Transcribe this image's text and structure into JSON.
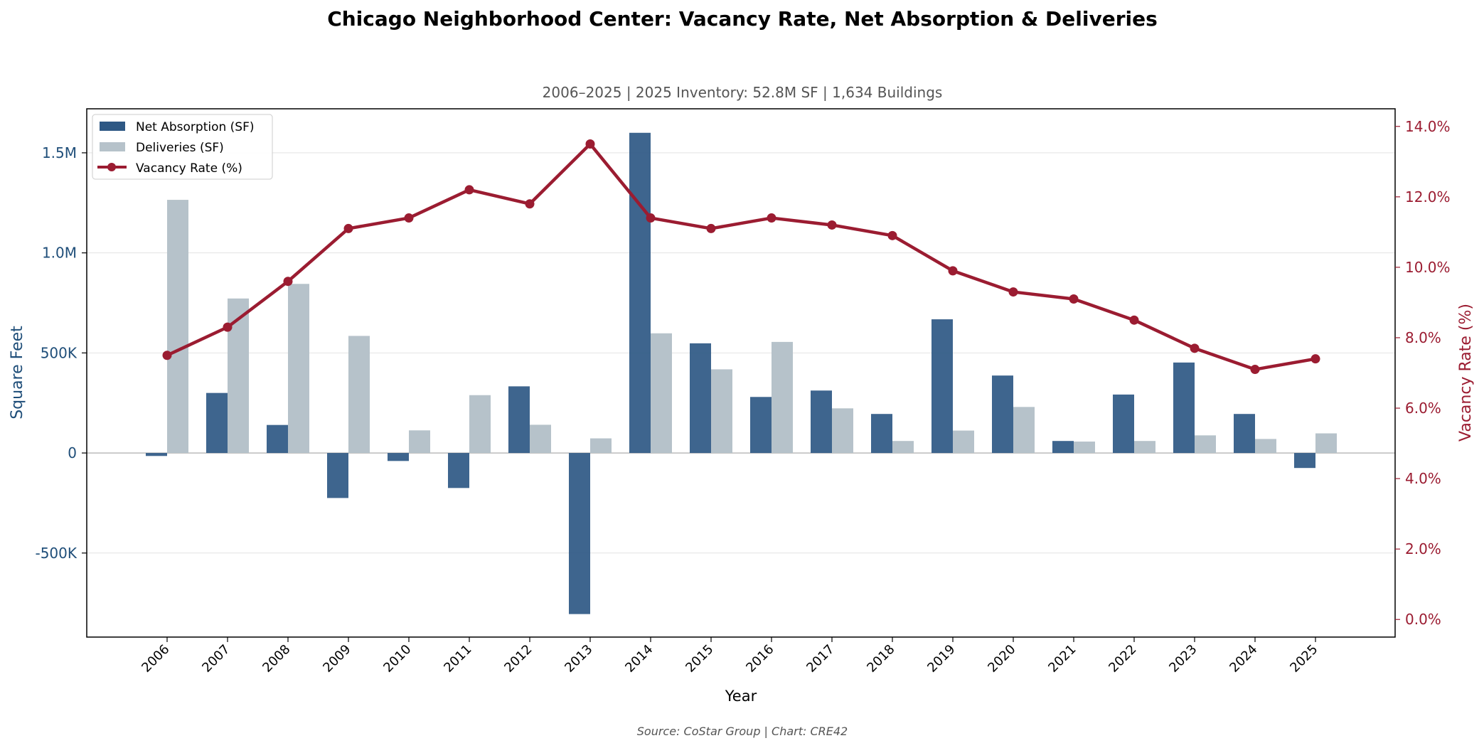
{
  "chart_data": {
    "type": "bar",
    "title": "Chicago Neighborhood Center: Vacancy Rate, Net Absorption & Deliveries",
    "subtitle": "2006–2025  |  2025 Inventory: 52.8M SF  |  1,634 Buildings",
    "xlabel": "Year",
    "ylabel_left": "Square Feet",
    "ylabel_right": "Vacancy Rate (%)",
    "source": "Source: CoStar Group  |  Chart: CRE42",
    "categories": [
      "2006",
      "2007",
      "2008",
      "2009",
      "2010",
      "2011",
      "2012",
      "2013",
      "2014",
      "2015",
      "2016",
      "2017",
      "2018",
      "2019",
      "2020",
      "2021",
      "2022",
      "2023",
      "2024",
      "2025"
    ],
    "series": [
      {
        "name": "Net Absorption (SF)",
        "type": "bar",
        "axis": "left",
        "color": "#2e5884",
        "values": [
          -15000,
          300000,
          140000,
          -225000,
          -40000,
          -175000,
          333000,
          -805000,
          1600000,
          548000,
          280000,
          312000,
          195000,
          668000,
          387000,
          60000,
          292000,
          452000,
          195000,
          -75000
        ]
      },
      {
        "name": "Deliveries (SF)",
        "type": "bar",
        "axis": "left",
        "color": "#b6c2ca",
        "values": [
          1265000,
          772000,
          845000,
          585000,
          113000,
          289000,
          141000,
          73000,
          598000,
          418000,
          555000,
          223000,
          60000,
          112000,
          230000,
          57000,
          60000,
          88000,
          70000,
          98000
        ]
      },
      {
        "name": "Vacancy Rate (%)",
        "type": "line",
        "axis": "right",
        "color": "#9b1c31",
        "values": [
          7.5,
          8.3,
          9.6,
          11.1,
          11.4,
          12.2,
          11.8,
          13.5,
          11.4,
          11.1,
          11.4,
          11.2,
          10.9,
          9.9,
          9.3,
          9.1,
          8.5,
          7.7,
          7.1,
          7.4
        ]
      }
    ],
    "ylim_left": [
      -920000,
      1720000
    ],
    "ylim_right": [
      -0.5,
      14.5
    ],
    "yticks_left": [
      {
        "value": -500000,
        "label": "-500K"
      },
      {
        "value": 0,
        "label": "0"
      },
      {
        "value": 500000,
        "label": "500K"
      },
      {
        "value": 1000000,
        "label": "1.0M"
      },
      {
        "value": 1500000,
        "label": "1.5M"
      }
    ],
    "yticks_right": [
      {
        "value": 0,
        "label": "0.0%"
      },
      {
        "value": 2,
        "label": "2.0%"
      },
      {
        "value": 4,
        "label": "4.0%"
      },
      {
        "value": 6,
        "label": "6.0%"
      },
      {
        "value": 8,
        "label": "8.0%"
      },
      {
        "value": 10,
        "label": "10.0%"
      },
      {
        "value": 12,
        "label": "12.0%"
      },
      {
        "value": 14,
        "label": "14.0%"
      }
    ],
    "grid": "horizontal",
    "legend_position": "top-left",
    "colors": {
      "absorption": "#2e5884",
      "deliveries": "#b6c2ca",
      "vacancy": "#9b1c31",
      "left_axis_text": "#1f4e79",
      "right_axis_text": "#9b1c31"
    }
  }
}
